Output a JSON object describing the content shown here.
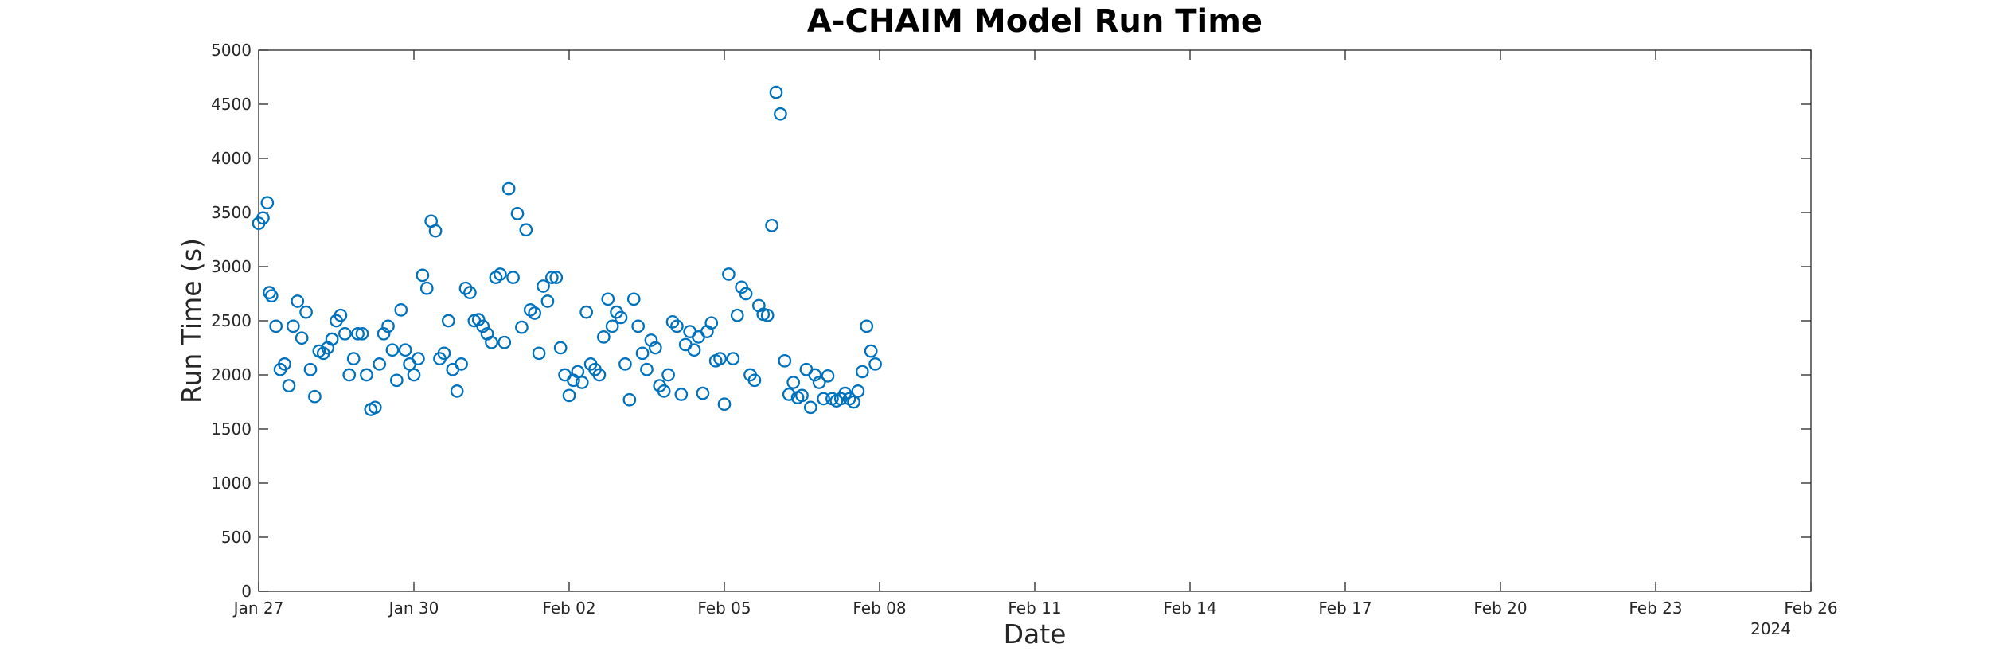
{
  "chart_data": {
    "type": "scatter",
    "title": "A-CHAIM Model Run Time",
    "xlabel": "Date",
    "ylabel": "Run Time (s)",
    "x_axis": {
      "type": "date",
      "range": [
        "2024-01-27",
        "2024-02-26"
      ],
      "ticks": [
        {
          "date": "2024-01-27",
          "label": "Jan 27"
        },
        {
          "date": "2024-01-30",
          "label": "Jan 30"
        },
        {
          "date": "2024-02-02",
          "label": "Feb 02"
        },
        {
          "date": "2024-02-05",
          "label": "Feb 05"
        },
        {
          "date": "2024-02-08",
          "label": "Feb 08"
        },
        {
          "date": "2024-02-11",
          "label": "Feb 11"
        },
        {
          "date": "2024-02-14",
          "label": "Feb 14"
        },
        {
          "date": "2024-02-17",
          "label": "Feb 17"
        },
        {
          "date": "2024-02-20",
          "label": "Feb 20"
        },
        {
          "date": "2024-02-23",
          "label": "Feb 23"
        },
        {
          "date": "2024-02-26",
          "label": "Feb 26"
        }
      ],
      "year_label": "2024"
    },
    "y_axis": {
      "range": [
        0,
        5000
      ],
      "ticks": [
        0,
        500,
        1000,
        1500,
        2000,
        2500,
        3000,
        3500,
        4000,
        4500,
        5000
      ]
    },
    "grid": false,
    "legend": "none",
    "marker": "open-circle",
    "marker_color": "#0072BD",
    "series": [
      {
        "points": [
          [
            "2024-01-27 00:00",
            3400
          ],
          [
            "2024-01-27 02:00",
            3450
          ],
          [
            "2024-01-27 04:00",
            3590
          ],
          [
            "2024-01-27 05:00",
            2760
          ],
          [
            "2024-01-27 06:00",
            2730
          ],
          [
            "2024-01-27 08:00",
            2450
          ],
          [
            "2024-01-27 10:00",
            2050
          ],
          [
            "2024-01-27 12:00",
            2100
          ],
          [
            "2024-01-27 14:00",
            1900
          ],
          [
            "2024-01-27 16:00",
            2450
          ],
          [
            "2024-01-27 18:00",
            2680
          ],
          [
            "2024-01-27 20:00",
            2340
          ],
          [
            "2024-01-27 22:00",
            2580
          ],
          [
            "2024-01-28 00:00",
            2050
          ],
          [
            "2024-01-28 02:00",
            1800
          ],
          [
            "2024-01-28 04:00",
            2220
          ],
          [
            "2024-01-28 06:00",
            2200
          ],
          [
            "2024-01-28 08:00",
            2250
          ],
          [
            "2024-01-28 10:00",
            2330
          ],
          [
            "2024-01-28 12:00",
            2500
          ],
          [
            "2024-01-28 14:00",
            2550
          ],
          [
            "2024-01-28 16:00",
            2380
          ],
          [
            "2024-01-28 18:00",
            2000
          ],
          [
            "2024-01-28 20:00",
            2150
          ],
          [
            "2024-01-28 22:00",
            2380
          ],
          [
            "2024-01-29 00:00",
            2380
          ],
          [
            "2024-01-29 02:00",
            2000
          ],
          [
            "2024-01-29 04:00",
            1680
          ],
          [
            "2024-01-29 06:00",
            1700
          ],
          [
            "2024-01-29 08:00",
            2100
          ],
          [
            "2024-01-29 10:00",
            2380
          ],
          [
            "2024-01-29 12:00",
            2450
          ],
          [
            "2024-01-29 14:00",
            2230
          ],
          [
            "2024-01-29 16:00",
            1950
          ],
          [
            "2024-01-29 18:00",
            2600
          ],
          [
            "2024-01-29 20:00",
            2230
          ],
          [
            "2024-01-29 22:00",
            2100
          ],
          [
            "2024-01-30 00:00",
            2000
          ],
          [
            "2024-01-30 02:00",
            2150
          ],
          [
            "2024-01-30 04:00",
            2920
          ],
          [
            "2024-01-30 06:00",
            2800
          ],
          [
            "2024-01-30 08:00",
            3420
          ],
          [
            "2024-01-30 10:00",
            3330
          ],
          [
            "2024-01-30 12:00",
            2150
          ],
          [
            "2024-01-30 14:00",
            2200
          ],
          [
            "2024-01-30 16:00",
            2500
          ],
          [
            "2024-01-30 18:00",
            2050
          ],
          [
            "2024-01-30 20:00",
            1850
          ],
          [
            "2024-01-30 22:00",
            2100
          ],
          [
            "2024-01-31 00:00",
            2800
          ],
          [
            "2024-01-31 02:00",
            2760
          ],
          [
            "2024-01-31 04:00",
            2500
          ],
          [
            "2024-01-31 06:00",
            2510
          ],
          [
            "2024-01-31 08:00",
            2450
          ],
          [
            "2024-01-31 10:00",
            2380
          ],
          [
            "2024-01-31 12:00",
            2300
          ],
          [
            "2024-01-31 14:00",
            2900
          ],
          [
            "2024-01-31 16:00",
            2930
          ],
          [
            "2024-01-31 18:00",
            2300
          ],
          [
            "2024-01-31 20:00",
            3720
          ],
          [
            "2024-01-31 22:00",
            2900
          ],
          [
            "2024-02-01 00:00",
            3490
          ],
          [
            "2024-02-01 02:00",
            2440
          ],
          [
            "2024-02-01 04:00",
            3340
          ],
          [
            "2024-02-01 06:00",
            2600
          ],
          [
            "2024-02-01 08:00",
            2570
          ],
          [
            "2024-02-01 10:00",
            2200
          ],
          [
            "2024-02-01 12:00",
            2820
          ],
          [
            "2024-02-01 14:00",
            2680
          ],
          [
            "2024-02-01 16:00",
            2900
          ],
          [
            "2024-02-01 18:00",
            2900
          ],
          [
            "2024-02-01 20:00",
            2250
          ],
          [
            "2024-02-01 22:00",
            2000
          ],
          [
            "2024-02-02 00:00",
            1810
          ],
          [
            "2024-02-02 02:00",
            1950
          ],
          [
            "2024-02-02 04:00",
            2030
          ],
          [
            "2024-02-02 06:00",
            1930
          ],
          [
            "2024-02-02 08:00",
            2580
          ],
          [
            "2024-02-02 10:00",
            2100
          ],
          [
            "2024-02-02 12:00",
            2050
          ],
          [
            "2024-02-02 14:00",
            2000
          ],
          [
            "2024-02-02 16:00",
            2350
          ],
          [
            "2024-02-02 18:00",
            2700
          ],
          [
            "2024-02-02 20:00",
            2450
          ],
          [
            "2024-02-02 22:00",
            2580
          ],
          [
            "2024-02-03 00:00",
            2530
          ],
          [
            "2024-02-03 02:00",
            2100
          ],
          [
            "2024-02-03 04:00",
            1770
          ],
          [
            "2024-02-03 06:00",
            2700
          ],
          [
            "2024-02-03 08:00",
            2450
          ],
          [
            "2024-02-03 10:00",
            2200
          ],
          [
            "2024-02-03 12:00",
            2050
          ],
          [
            "2024-02-03 14:00",
            2320
          ],
          [
            "2024-02-03 16:00",
            2250
          ],
          [
            "2024-02-03 18:00",
            1900
          ],
          [
            "2024-02-03 20:00",
            1850
          ],
          [
            "2024-02-03 22:00",
            2000
          ],
          [
            "2024-02-04 00:00",
            2490
          ],
          [
            "2024-02-04 02:00",
            2450
          ],
          [
            "2024-02-04 04:00",
            1820
          ],
          [
            "2024-02-04 06:00",
            2280
          ],
          [
            "2024-02-04 08:00",
            2400
          ],
          [
            "2024-02-04 10:00",
            2230
          ],
          [
            "2024-02-04 12:00",
            2350
          ],
          [
            "2024-02-04 14:00",
            1830
          ],
          [
            "2024-02-04 16:00",
            2400
          ],
          [
            "2024-02-04 18:00",
            2480
          ],
          [
            "2024-02-04 20:00",
            2130
          ],
          [
            "2024-02-04 22:00",
            2150
          ],
          [
            "2024-02-05 00:00",
            1730
          ],
          [
            "2024-02-05 02:00",
            2930
          ],
          [
            "2024-02-05 04:00",
            2150
          ],
          [
            "2024-02-05 06:00",
            2550
          ],
          [
            "2024-02-05 08:00",
            2810
          ],
          [
            "2024-02-05 10:00",
            2750
          ],
          [
            "2024-02-05 12:00",
            2000
          ],
          [
            "2024-02-05 14:00",
            1950
          ],
          [
            "2024-02-05 16:00",
            2640
          ],
          [
            "2024-02-05 18:00",
            2560
          ],
          [
            "2024-02-05 20:00",
            2550
          ],
          [
            "2024-02-05 22:00",
            3380
          ],
          [
            "2024-02-06 00:00",
            4610
          ],
          [
            "2024-02-06 02:00",
            4410
          ],
          [
            "2024-02-06 04:00",
            2130
          ],
          [
            "2024-02-06 06:00",
            1820
          ],
          [
            "2024-02-06 08:00",
            1930
          ],
          [
            "2024-02-06 10:00",
            1790
          ],
          [
            "2024-02-06 12:00",
            1810
          ],
          [
            "2024-02-06 14:00",
            2050
          ],
          [
            "2024-02-06 16:00",
            1700
          ],
          [
            "2024-02-06 18:00",
            2000
          ],
          [
            "2024-02-06 20:00",
            1930
          ],
          [
            "2024-02-06 22:00",
            1780
          ],
          [
            "2024-02-07 00:00",
            1990
          ],
          [
            "2024-02-07 02:00",
            1780
          ],
          [
            "2024-02-07 04:00",
            1760
          ],
          [
            "2024-02-07 06:00",
            1780
          ],
          [
            "2024-02-07 08:00",
            1830
          ],
          [
            "2024-02-07 10:00",
            1780
          ],
          [
            "2024-02-07 12:00",
            1750
          ],
          [
            "2024-02-07 14:00",
            1850
          ],
          [
            "2024-02-07 16:00",
            2030
          ],
          [
            "2024-02-07 18:00",
            2450
          ],
          [
            "2024-02-07 20:00",
            2220
          ],
          [
            "2024-02-07 22:00",
            2100
          ]
        ]
      }
    ]
  }
}
